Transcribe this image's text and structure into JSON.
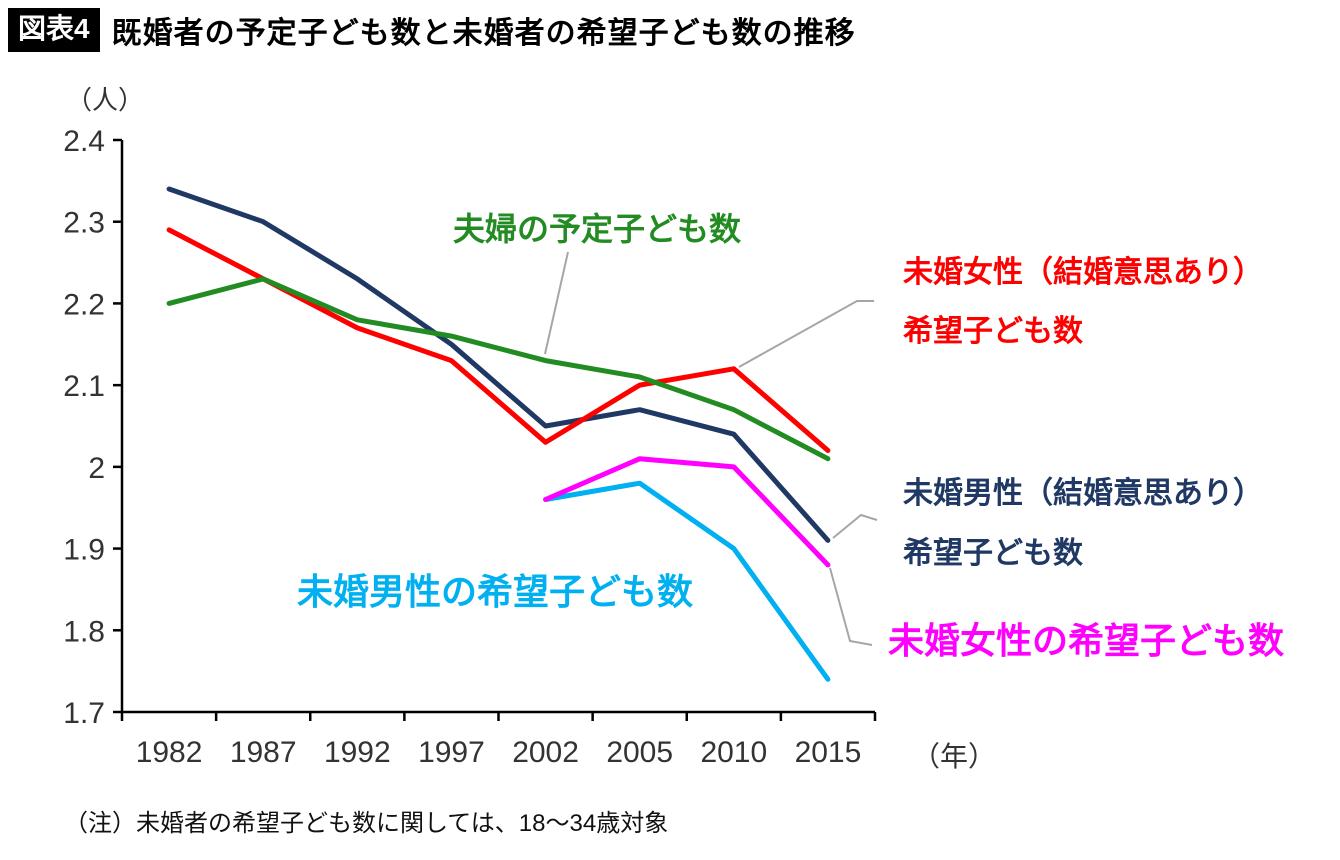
{
  "header": {
    "badge": "図表4",
    "title": "既婚者の予定子ども数と未婚者の希望子ども数の推移"
  },
  "chart_data": {
    "type": "line",
    "title": "既婚者の予定子ども数と未婚者の希望子ども数の推移",
    "unit_label": "（人）",
    "x_axis_label": "（年）",
    "categories": [
      "1982",
      "1987",
      "1992",
      "1997",
      "2002",
      "2005",
      "2010",
      "2015"
    ],
    "ylim": [
      1.7,
      2.4
    ],
    "ytick_labels": [
      "2.4",
      "2.3",
      "2.2",
      "2.1",
      "2",
      "1.9",
      "1.8",
      "1.7"
    ],
    "grid": false,
    "legend_position": "inline-annotations",
    "series": [
      {
        "name": "未婚男性（結婚意思あり）希望子ども数",
        "color": "#1F3864",
        "values": [
          2.34,
          2.3,
          2.23,
          2.15,
          2.05,
          2.07,
          2.04,
          1.91
        ]
      },
      {
        "name": "未婚女性（結婚意思あり）希望子ども数",
        "color": "#FF0000",
        "values": [
          2.29,
          2.23,
          2.17,
          2.13,
          2.03,
          2.1,
          2.12,
          2.02
        ]
      },
      {
        "name": "夫婦の予定子ども数",
        "color": "#228B22",
        "values": [
          2.2,
          2.23,
          2.18,
          2.16,
          2.13,
          2.11,
          2.07,
          2.01
        ]
      },
      {
        "name": "未婚男性の希望子ども数",
        "color": "#00B0F0",
        "values": [
          null,
          null,
          null,
          null,
          1.96,
          1.98,
          1.9,
          1.74
        ]
      },
      {
        "name": "未婚女性の希望子ども数",
        "color": "#FF00FF",
        "values": [
          null,
          null,
          null,
          null,
          1.96,
          2.01,
          2.0,
          1.88
        ]
      }
    ]
  },
  "annotations": {
    "couples": "夫婦の予定子ども数",
    "women_intent_1": "未婚女性（結婚意思あり）",
    "women_intent_2": "希望子ども数",
    "men_intent_1": "未婚男性（結婚意思あり）",
    "men_intent_2": "希望子ども数",
    "men_all": "未婚男性の希望子ども数",
    "women_all": "未婚女性の希望子ども数"
  },
  "note": "（注）未婚者の希望子ども数に関しては、18〜34歳対象"
}
